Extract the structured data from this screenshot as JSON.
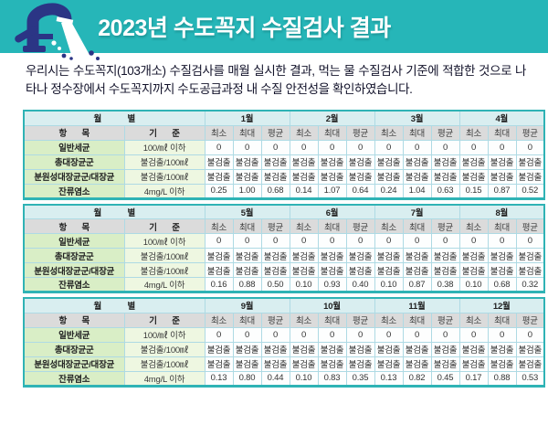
{
  "banner": {
    "title": "2023년 수도꼭지 수질검사 결과",
    "bg_color": "#26b6b8",
    "title_color": "#ffffff",
    "icon": "faucet-icon",
    "icon_color": "#2b3585"
  },
  "intro": {
    "text": "우리시는 수도꼭지(103개소) 수질검사를 매월 실시한 결과, 먹는 물 수질검사 기준에 적합한 것으로 나타나 정수장에서 수도꼭지까지 수도공급과정 내 수질 안전성을 확인하였습니다."
  },
  "table_common": {
    "corner_label": "월 별",
    "item_header": "항 목",
    "standard_header": "기 준",
    "stat_headers": [
      "최소",
      "최대",
      "평균"
    ]
  },
  "colors": {
    "table_border": "#2fb3b5",
    "header_cyan": "#d9eef0",
    "header_gray": "#dbdbdb",
    "item_green": "#d9eec6",
    "standard_green": "#eef7e1",
    "cell_line_blue": "#aedae4"
  },
  "tables": [
    {
      "months": [
        "1월",
        "2월",
        "3월",
        "4월"
      ],
      "rows": [
        {
          "item": "일반세균",
          "standard": "100/㎖ 이하",
          "values": [
            "0",
            "0",
            "0",
            "0",
            "0",
            "0",
            "0",
            "0",
            "0",
            "0",
            "0",
            "0"
          ]
        },
        {
          "item": "총대장균군",
          "standard": "불검출/100㎖",
          "values": [
            "불검출",
            "불검출",
            "불검출",
            "불검출",
            "불검출",
            "불검출",
            "불검출",
            "불검출",
            "불검출",
            "불검출",
            "불검출",
            "불검출"
          ]
        },
        {
          "item": "분원성대장균군/대장균",
          "standard": "불검출/100㎖",
          "values": [
            "불검출",
            "불검출",
            "불검출",
            "불검출",
            "불검출",
            "불검출",
            "불검출",
            "불검출",
            "불검출",
            "불검출",
            "불검출",
            "불검출"
          ]
        },
        {
          "item": "잔류염소",
          "standard": "4mg/L 이하",
          "values": [
            "0.25",
            "1.00",
            "0.68",
            "0.14",
            "1.07",
            "0.64",
            "0.24",
            "1.04",
            "0.63",
            "0.15",
            "0.87",
            "0.52"
          ]
        }
      ]
    },
    {
      "months": [
        "5월",
        "6월",
        "7월",
        "8월"
      ],
      "rows": [
        {
          "item": "일반세균",
          "standard": "100/㎖ 이하",
          "values": [
            "0",
            "0",
            "0",
            "0",
            "0",
            "0",
            "0",
            "0",
            "0",
            "0",
            "0",
            "0"
          ]
        },
        {
          "item": "총대장균군",
          "standard": "불검출/100㎖",
          "values": [
            "불검출",
            "불검출",
            "불검출",
            "불검출",
            "불검출",
            "불검출",
            "불검출",
            "불검출",
            "불검출",
            "불검출",
            "불검출",
            "불검출"
          ]
        },
        {
          "item": "분원성대장균군/대장균",
          "standard": "불검출/100㎖",
          "values": [
            "불검출",
            "불검출",
            "불검출",
            "불검출",
            "불검출",
            "불검출",
            "불검출",
            "불검출",
            "불검출",
            "불검출",
            "불검출",
            "불검출"
          ]
        },
        {
          "item": "잔류염소",
          "standard": "4mg/L 이하",
          "values": [
            "0.16",
            "0.88",
            "0.50",
            "0.10",
            "0.93",
            "0.40",
            "0.10",
            "0.87",
            "0.38",
            "0.10",
            "0.68",
            "0.32"
          ]
        }
      ]
    },
    {
      "months": [
        "9월",
        "10월",
        "11월",
        "12월"
      ],
      "rows": [
        {
          "item": "일반세균",
          "standard": "100/㎖ 이하",
          "values": [
            "0",
            "0",
            "0",
            "0",
            "0",
            "0",
            "0",
            "0",
            "0",
            "0",
            "0",
            "0"
          ]
        },
        {
          "item": "총대장균군",
          "standard": "불검출/100㎖",
          "values": [
            "불검출",
            "불검출",
            "불검출",
            "불검출",
            "불검출",
            "불검출",
            "불검출",
            "불검출",
            "불검출",
            "불검출",
            "불검출",
            "불검출"
          ]
        },
        {
          "item": "분원성대장균군/대장균",
          "standard": "불검출/100㎖",
          "values": [
            "불검출",
            "불검출",
            "불검출",
            "불검출",
            "불검출",
            "불검출",
            "불검출",
            "불검출",
            "불검출",
            "불검출",
            "불검출",
            "불검출"
          ]
        },
        {
          "item": "잔류염소",
          "standard": "4mg/L 이하",
          "values": [
            "0.13",
            "0.80",
            "0.44",
            "0.10",
            "0.83",
            "0.35",
            "0.13",
            "0.82",
            "0.45",
            "0.17",
            "0.88",
            "0.53"
          ]
        }
      ]
    }
  ]
}
